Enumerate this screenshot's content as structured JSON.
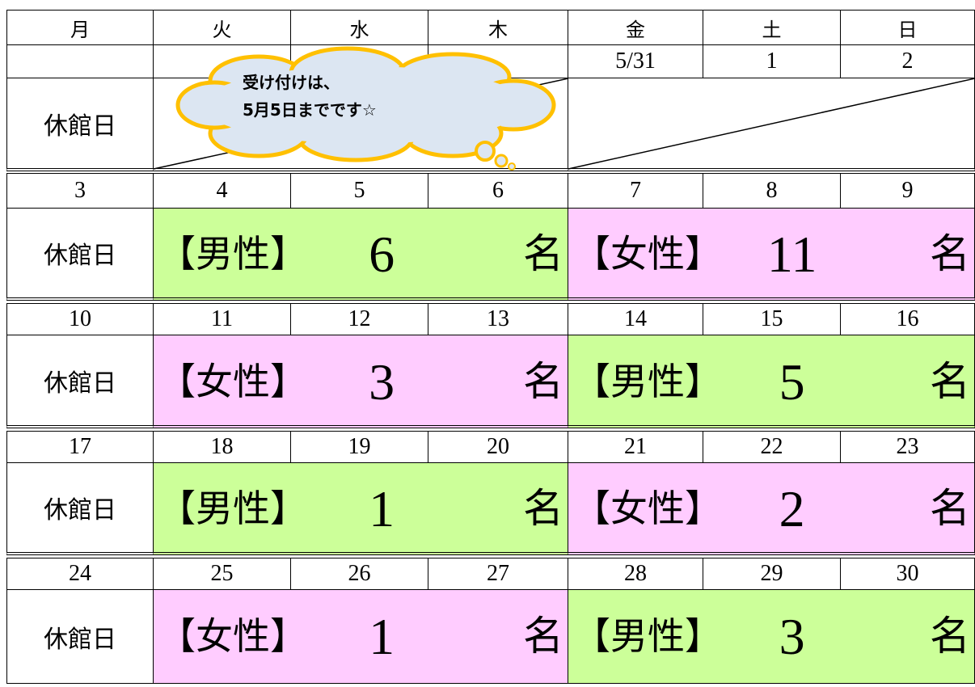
{
  "header": {
    "days": [
      "月",
      "火",
      "水",
      "木",
      "金",
      "土",
      "日"
    ]
  },
  "weeks": [
    {
      "dates": [
        null,
        null,
        null,
        null,
        "5/31",
        "1",
        "2"
      ],
      "closed": "休館日",
      "callout": [
        "受け付けは、",
        "5月5日までです☆"
      ]
    },
    {
      "dates": [
        "3",
        "4",
        "5",
        "6",
        "7",
        "8",
        "9"
      ],
      "closed": "休館日",
      "blocks": [
        {
          "label": "【男性】",
          "count": "6",
          "unit": "名",
          "color": "#ccff99"
        },
        {
          "label": "【女性】",
          "count": "11",
          "unit": "名",
          "color": "#ffccff"
        }
      ]
    },
    {
      "dates": [
        "10",
        "11",
        "12",
        "13",
        "14",
        "15",
        "16"
      ],
      "closed": "休館日",
      "blocks": [
        {
          "label": "【女性】",
          "count": "3",
          "unit": "名",
          "color": "#ffccff"
        },
        {
          "label": "【男性】",
          "count": "5",
          "unit": "名",
          "color": "#ccff99"
        }
      ]
    },
    {
      "dates": [
        "17",
        "18",
        "19",
        "20",
        "21",
        "22",
        "23"
      ],
      "closed": "休館日",
      "blocks": [
        {
          "label": "【男性】",
          "count": "1",
          "unit": "名",
          "color": "#ccff99"
        },
        {
          "label": "【女性】",
          "count": "2",
          "unit": "名",
          "color": "#ffccff"
        }
      ]
    },
    {
      "dates": [
        "24",
        "25",
        "26",
        "27",
        "28",
        "29",
        "30"
      ],
      "closed": "休館日",
      "blocks": [
        {
          "label": "【女性】",
          "count": "1",
          "unit": "名",
          "color": "#ffccff"
        },
        {
          "label": "【男性】",
          "count": "3",
          "unit": "名",
          "color": "#ccff99"
        }
      ]
    }
  ]
}
